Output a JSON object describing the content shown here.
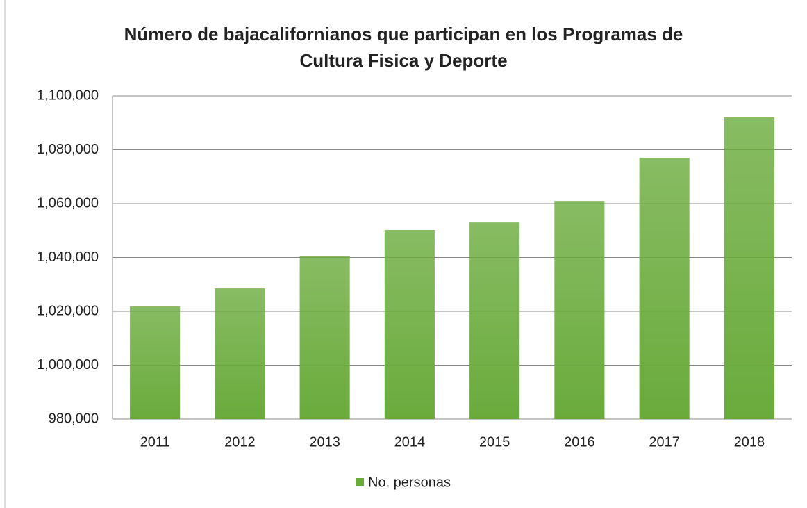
{
  "chart_data": {
    "type": "bar",
    "title": "Número de bajacalifornianos que participan en los Programas de Cultura Fisica y Deporte",
    "categories": [
      "2011",
      "2012",
      "2013",
      "2014",
      "2015",
      "2016",
      "2017",
      "2018"
    ],
    "series": [
      {
        "name": "No. personas",
        "color": "#6aab3c",
        "values": [
          1021800,
          1028500,
          1040400,
          1050200,
          1053000,
          1061000,
          1077000,
          1092000
        ]
      }
    ],
    "ylim": [
      980000,
      1100000
    ],
    "yticks": [
      {
        "value": 980000,
        "label": "980,000"
      },
      {
        "value": 1000000,
        "label": "1,000,000"
      },
      {
        "value": 1020000,
        "label": "1,020,000"
      },
      {
        "value": 1040000,
        "label": "1,040,000"
      },
      {
        "value": 1060000,
        "label": "1,060,000"
      },
      {
        "value": 1080000,
        "label": "1,080,000"
      },
      {
        "value": 1100000,
        "label": "1,100,000"
      }
    ],
    "grid": true,
    "legend": "bottom"
  }
}
